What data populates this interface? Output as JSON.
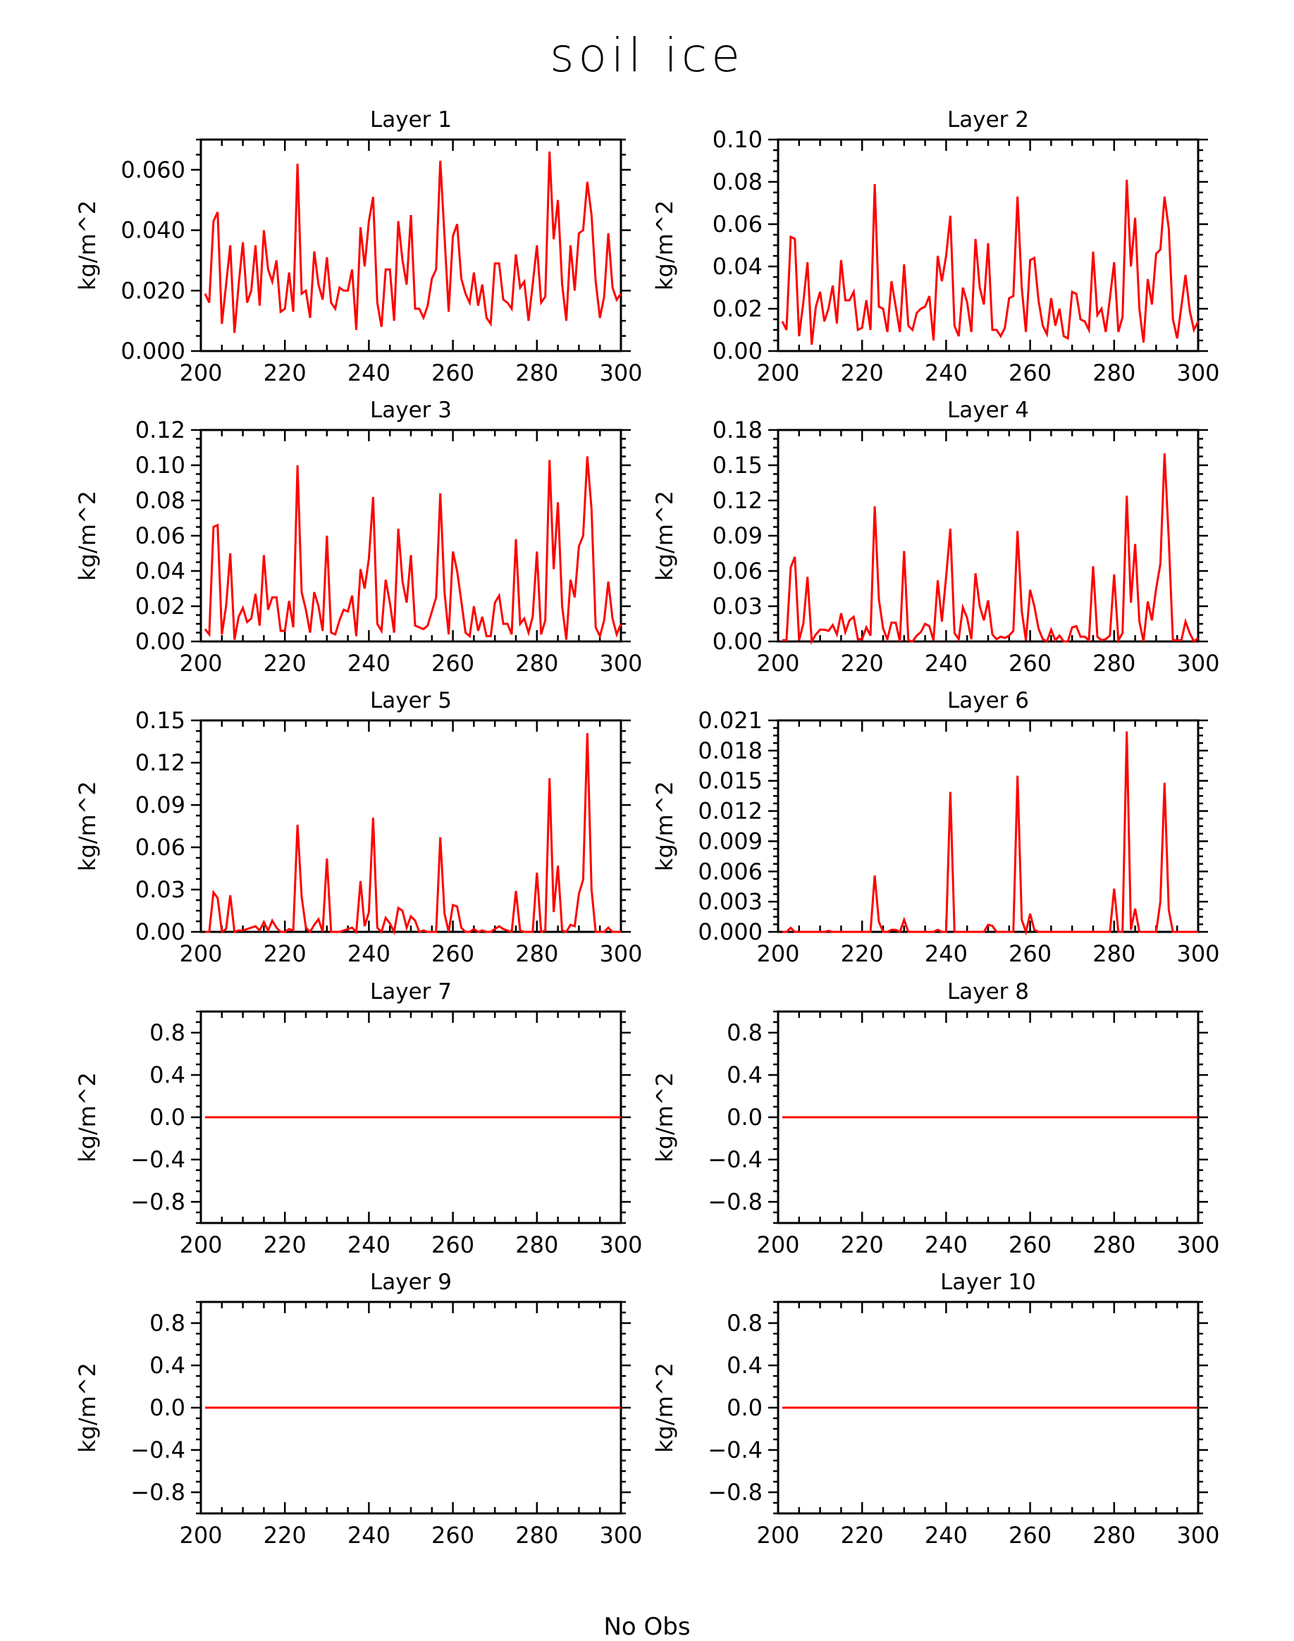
{
  "title": "soil ice",
  "xlabel": "No Obs",
  "colors": {
    "line": "#ff0000",
    "axis": "#000000"
  },
  "chart_data": [
    {
      "type": "line",
      "title": "Layer 1",
      "ylabel": "kg/m^2",
      "xlim": [
        200,
        300
      ],
      "ylim": [
        0,
        0.07
      ],
      "xticks": [
        "200",
        "220",
        "240",
        "260",
        "280",
        "300"
      ],
      "yticks": [
        "0.000",
        "0.020",
        "0.040",
        "0.060"
      ],
      "ytick_values": [
        0,
        0.02,
        0.04,
        0.06
      ],
      "series": [
        {
          "x_start": 201,
          "values": [
            0.019,
            0.016,
            0.043,
            0.046,
            0.009,
            0.022,
            0.035,
            0.006,
            0.022,
            0.036,
            0.016,
            0.02,
            0.035,
            0.015,
            0.04,
            0.027,
            0.023,
            0.03,
            0.013,
            0.014,
            0.026,
            0.013,
            0.062,
            0.019,
            0.02,
            0.011,
            0.033,
            0.022,
            0.017,
            0.031,
            0.016,
            0.014,
            0.021,
            0.02,
            0.02,
            0.027,
            0.007,
            0.041,
            0.028,
            0.043,
            0.051,
            0.016,
            0.008,
            0.027,
            0.027,
            0.01,
            0.043,
            0.03,
            0.022,
            0.045,
            0.014,
            0.014,
            0.011,
            0.015,
            0.024,
            0.027,
            0.063,
            0.038,
            0.013,
            0.038,
            0.042,
            0.024,
            0.019,
            0.016,
            0.026,
            0.015,
            0.022,
            0.011,
            0.009,
            0.029,
            0.029,
            0.017,
            0.016,
            0.014,
            0.032,
            0.021,
            0.023,
            0.01,
            0.022,
            0.035,
            0.016,
            0.018,
            0.066,
            0.037,
            0.05,
            0.022,
            0.01,
            0.035,
            0.02,
            0.039,
            0.04,
            0.056,
            0.045,
            0.023,
            0.011,
            0.018,
            0.039,
            0.021,
            0.017,
            0.019
          ]
        }
      ]
    },
    {
      "type": "line",
      "title": "Layer 2",
      "ylabel": "kg/m^2",
      "xlim": [
        200,
        300
      ],
      "ylim": [
        0,
        0.1
      ],
      "xticks": [
        "200",
        "220",
        "240",
        "260",
        "280",
        "300"
      ],
      "yticks": [
        "0.00",
        "0.02",
        "0.04",
        "0.06",
        "0.08",
        "0.10"
      ],
      "ytick_values": [
        0,
        0.02,
        0.04,
        0.06,
        0.08,
        0.1
      ],
      "series": [
        {
          "x_start": 201,
          "values": [
            0.014,
            0.01,
            0.054,
            0.053,
            0.007,
            0.023,
            0.042,
            0.003,
            0.021,
            0.028,
            0.014,
            0.02,
            0.031,
            0.013,
            0.043,
            0.024,
            0.024,
            0.028,
            0.01,
            0.011,
            0.024,
            0.01,
            0.079,
            0.021,
            0.02,
            0.009,
            0.033,
            0.021,
            0.009,
            0.041,
            0.012,
            0.01,
            0.018,
            0.02,
            0.021,
            0.026,
            0.005,
            0.045,
            0.033,
            0.045,
            0.064,
            0.012,
            0.007,
            0.03,
            0.023,
            0.009,
            0.053,
            0.03,
            0.022,
            0.051,
            0.01,
            0.01,
            0.007,
            0.011,
            0.025,
            0.026,
            0.073,
            0.03,
            0.009,
            0.043,
            0.044,
            0.024,
            0.012,
            0.008,
            0.025,
            0.012,
            0.02,
            0.007,
            0.006,
            0.028,
            0.027,
            0.015,
            0.014,
            0.01,
            0.047,
            0.017,
            0.02,
            0.009,
            0.025,
            0.042,
            0.009,
            0.016,
            0.081,
            0.04,
            0.063,
            0.02,
            0.004,
            0.034,
            0.022,
            0.046,
            0.048,
            0.073,
            0.058,
            0.015,
            0.006,
            0.021,
            0.036,
            0.019,
            0.01,
            0.014
          ]
        }
      ]
    },
    {
      "type": "line",
      "title": "Layer 3",
      "ylabel": "kg/m^2",
      "xlim": [
        200,
        300
      ],
      "ylim": [
        0,
        0.12
      ],
      "xticks": [
        "200",
        "220",
        "240",
        "260",
        "280",
        "300"
      ],
      "yticks": [
        "0.00",
        "0.02",
        "0.04",
        "0.06",
        "0.08",
        "0.10",
        "0.12"
      ],
      "ytick_values": [
        0,
        0.02,
        0.04,
        0.06,
        0.08,
        0.1,
        0.12
      ],
      "series": [
        {
          "x_start": 201,
          "values": [
            0.007,
            0.004,
            0.065,
            0.066,
            0.004,
            0.02,
            0.05,
            0.001,
            0.014,
            0.019,
            0.011,
            0.013,
            0.027,
            0.009,
            0.049,
            0.018,
            0.025,
            0.025,
            0.006,
            0.006,
            0.023,
            0.008,
            0.1,
            0.028,
            0.018,
            0.005,
            0.028,
            0.02,
            0.006,
            0.06,
            0.005,
            0.004,
            0.012,
            0.018,
            0.017,
            0.026,
            0.003,
            0.041,
            0.03,
            0.047,
            0.082,
            0.01,
            0.006,
            0.035,
            0.022,
            0.005,
            0.064,
            0.034,
            0.022,
            0.049,
            0.009,
            0.008,
            0.007,
            0.009,
            0.017,
            0.025,
            0.084,
            0.028,
            0.004,
            0.051,
            0.04,
            0.023,
            0.005,
            0.003,
            0.02,
            0.006,
            0.014,
            0.003,
            0.003,
            0.022,
            0.026,
            0.01,
            0.01,
            0.004,
            0.058,
            0.01,
            0.013,
            0.005,
            0.014,
            0.051,
            0.004,
            0.012,
            0.103,
            0.041,
            0.079,
            0.02,
            0.001,
            0.035,
            0.025,
            0.054,
            0.06,
            0.105,
            0.075,
            0.008,
            0.003,
            0.012,
            0.034,
            0.013,
            0.004,
            0.01
          ]
        }
      ]
    },
    {
      "type": "line",
      "title": "Layer 4",
      "ylabel": "kg/m^2",
      "xlim": [
        200,
        300
      ],
      "ylim": [
        0,
        0.18
      ],
      "xticks": [
        "200",
        "220",
        "240",
        "260",
        "280",
        "300"
      ],
      "yticks": [
        "0.00",
        "0.03",
        "0.06",
        "0.09",
        "0.12",
        "0.15",
        "0.18"
      ],
      "ytick_values": [
        0,
        0.03,
        0.06,
        0.09,
        0.12,
        0.15,
        0.18
      ],
      "series": [
        {
          "x_start": 201,
          "values": [
            0.001,
            0.001,
            0.063,
            0.072,
            0.001,
            0.015,
            0.055,
            0.0,
            0.006,
            0.01,
            0.01,
            0.009,
            0.014,
            0.006,
            0.024,
            0.008,
            0.018,
            0.021,
            0.002,
            0.002,
            0.012,
            0.005,
            0.115,
            0.036,
            0.011,
            0.002,
            0.016,
            0.016,
            0.0,
            0.077,
            0.001,
            0.0,
            0.005,
            0.008,
            0.015,
            0.013,
            0.001,
            0.052,
            0.017,
            0.055,
            0.096,
            0.007,
            0.002,
            0.029,
            0.02,
            0.002,
            0.058,
            0.03,
            0.018,
            0.035,
            0.006,
            0.002,
            0.004,
            0.003,
            0.005,
            0.009,
            0.094,
            0.026,
            0.001,
            0.044,
            0.03,
            0.011,
            0.002,
            0.0,
            0.01,
            0.001,
            0.005,
            0.0,
            0.0,
            0.012,
            0.013,
            0.004,
            0.004,
            0.001,
            0.064,
            0.004,
            0.001,
            0.002,
            0.005,
            0.057,
            0.001,
            0.007,
            0.124,
            0.033,
            0.083,
            0.017,
            0.0,
            0.034,
            0.018,
            0.045,
            0.066,
            0.16,
            0.087,
            0.001,
            0.001,
            0.001,
            0.017,
            0.007,
            0.0,
            0.003
          ]
        }
      ]
    },
    {
      "type": "line",
      "title": "Layer 5",
      "ylabel": "kg/m^2",
      "xlim": [
        200,
        300
      ],
      "ylim": [
        0,
        0.15
      ],
      "xticks": [
        "200",
        "220",
        "240",
        "260",
        "280",
        "300"
      ],
      "yticks": [
        "0.00",
        "0.03",
        "0.06",
        "0.09",
        "0.12",
        "0.15"
      ],
      "ytick_values": [
        0,
        0.03,
        0.06,
        0.09,
        0.12,
        0.15
      ],
      "series": [
        {
          "x_start": 201,
          "values": [
            0.0,
            0.0,
            0.028,
            0.024,
            0.0,
            0.002,
            0.026,
            0.0,
            0.001,
            0.001,
            0.002,
            0.003,
            0.004,
            0.001,
            0.007,
            0.001,
            0.008,
            0.003,
            0.0,
            0.0,
            0.002,
            0.001,
            0.076,
            0.025,
            0.003,
            0.0,
            0.005,
            0.009,
            0.0,
            0.052,
            0.0,
            0.0,
            0.0,
            0.001,
            0.002,
            0.003,
            0.0,
            0.036,
            0.004,
            0.014,
            0.081,
            0.003,
            0.0,
            0.01,
            0.006,
            0.0,
            0.017,
            0.015,
            0.003,
            0.011,
            0.008,
            0.0,
            0.001,
            0.0,
            0.0,
            0.0,
            0.067,
            0.013,
            0.0,
            0.019,
            0.018,
            0.003,
            0.0,
            0.0,
            0.002,
            0.0,
            0.001,
            0.0,
            0.0,
            0.002,
            0.004,
            0.002,
            0.001,
            0.0,
            0.029,
            0.001,
            0.0,
            0.0,
            0.0,
            0.042,
            0.0,
            0.001,
            0.109,
            0.014,
            0.047,
            0.001,
            0.0,
            0.005,
            0.004,
            0.027,
            0.037,
            0.141,
            0.03,
            0.0,
            0.0,
            0.0,
            0.003,
            0.0,
            0.0,
            0.0
          ]
        }
      ]
    },
    {
      "type": "line",
      "title": "Layer 6",
      "ylabel": "kg/m^2",
      "xlim": [
        200,
        300
      ],
      "ylim": [
        0,
        0.021
      ],
      "xticks": [
        "200",
        "220",
        "240",
        "260",
        "280",
        "300"
      ],
      "yticks": [
        "0.000",
        "0.003",
        "0.006",
        "0.009",
        "0.012",
        "0.015",
        "0.018",
        "0.021"
      ],
      "ytick_values": [
        0,
        0.003,
        0.006,
        0.009,
        0.012,
        0.015,
        0.018,
        0.021
      ],
      "series": [
        {
          "x_start": 201,
          "values": [
            0.0,
            0.0,
            0.0004,
            0.0,
            0.0,
            0.0,
            0.0,
            0.0,
            0.0,
            0.0,
            0.0,
            0.0001,
            0.0,
            0.0,
            0.0,
            0.0,
            0.0,
            0.0,
            0.0,
            0.0,
            0.0,
            0.0,
            0.0056,
            0.001,
            0.0,
            0.0,
            0.0002,
            0.0002,
            0.0,
            0.0012,
            0.0,
            0.0,
            0.0,
            0.0,
            0.0,
            0.0,
            0.0,
            0.0002,
            0.0,
            0.0,
            0.0139,
            0.0,
            0.0,
            0.0,
            0.0,
            0.0,
            0.0,
            0.0,
            0.0,
            0.0007,
            0.0006,
            0.0,
            0.0,
            0.0,
            0.0,
            0.0,
            0.0155,
            0.0012,
            0.0,
            0.0018,
            0.0002,
            0.0,
            0.0,
            0.0,
            0.0,
            0.0,
            0.0,
            0.0,
            0.0,
            0.0,
            0.0,
            0.0,
            0.0,
            0.0,
            0.0,
            0.0,
            0.0,
            0.0,
            0.0,
            0.0043,
            0.0,
            0.0,
            0.0199,
            0.0002,
            0.0023,
            0.0,
            0.0,
            0.0,
            0.0,
            0.0,
            0.003,
            0.0148,
            0.0022,
            0.0,
            0.0,
            0.0,
            0.0,
            0.0,
            0.0,
            0.0
          ]
        }
      ]
    },
    {
      "type": "line",
      "title": "Layer 7",
      "ylabel": "kg/m^2",
      "xlim": [
        200,
        300
      ],
      "ylim": [
        -1,
        1
      ],
      "xticks": [
        "200",
        "220",
        "240",
        "260",
        "280",
        "300"
      ],
      "yticks": [
        "−0.8",
        "−0.4",
        "0.0",
        "0.4",
        "0.8"
      ],
      "ytick_values": [
        -0.8,
        -0.4,
        0.0,
        0.4,
        0.8
      ],
      "series": [
        {
          "x": [
            201,
            300
          ],
          "values": [
            0,
            0
          ]
        }
      ]
    },
    {
      "type": "line",
      "title": "Layer 8",
      "ylabel": "kg/m^2",
      "xlim": [
        200,
        300
      ],
      "ylim": [
        -1,
        1
      ],
      "xticks": [
        "200",
        "220",
        "240",
        "260",
        "280",
        "300"
      ],
      "yticks": [
        "−0.8",
        "−0.4",
        "0.0",
        "0.4",
        "0.8"
      ],
      "ytick_values": [
        -0.8,
        -0.4,
        0.0,
        0.4,
        0.8
      ],
      "series": [
        {
          "x": [
            201,
            300
          ],
          "values": [
            0,
            0
          ]
        }
      ]
    },
    {
      "type": "line",
      "title": "Layer 9",
      "ylabel": "kg/m^2",
      "xlim": [
        200,
        300
      ],
      "ylim": [
        -1,
        1
      ],
      "xticks": [
        "200",
        "220",
        "240",
        "260",
        "280",
        "300"
      ],
      "yticks": [
        "−0.8",
        "−0.4",
        "0.0",
        "0.4",
        "0.8"
      ],
      "ytick_values": [
        -0.8,
        -0.4,
        0.0,
        0.4,
        0.8
      ],
      "series": [
        {
          "x": [
            201,
            300
          ],
          "values": [
            0,
            0
          ]
        }
      ]
    },
    {
      "type": "line",
      "title": "Layer 10",
      "ylabel": "kg/m^2",
      "xlim": [
        200,
        300
      ],
      "ylim": [
        -1,
        1
      ],
      "xticks": [
        "200",
        "220",
        "240",
        "260",
        "280",
        "300"
      ],
      "yticks": [
        "−0.8",
        "−0.4",
        "0.0",
        "0.4",
        "0.8"
      ],
      "ytick_values": [
        -0.8,
        -0.4,
        0.0,
        0.4,
        0.8
      ],
      "series": [
        {
          "x": [
            201,
            300
          ],
          "values": [
            0,
            0
          ]
        }
      ]
    }
  ]
}
